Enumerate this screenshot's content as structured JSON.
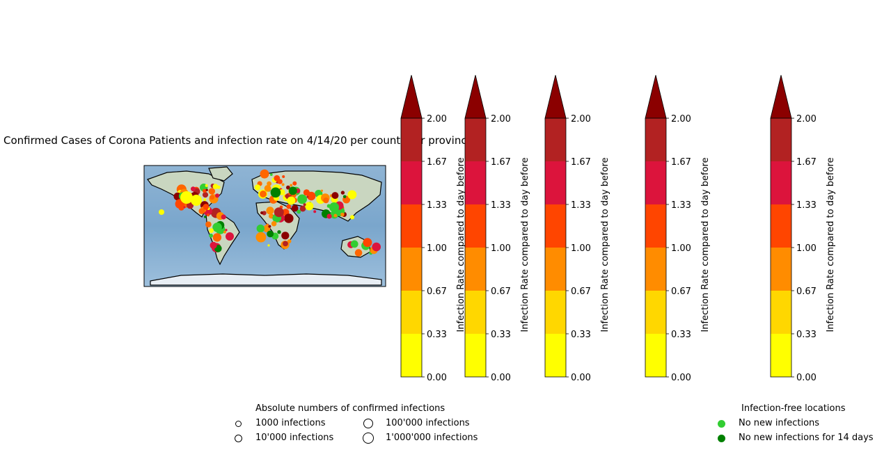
{
  "chart_data": [
    {
      "type": "scatter-map",
      "title": "Confirmed Cases of Corona Patients and infection rate on 4/14/20 per country or province",
      "size_legend": {
        "title": "Absolute numbers of confirmed infections",
        "entries": [
          "1000 infections",
          "10'000 infections",
          "100'000 infections",
          "1'000'000 infections"
        ]
      },
      "free_legend": {
        "title": "Infection-free locations",
        "entries": [
          {
            "label": "No new infections",
            "color": "#32cd32"
          },
          {
            "label": "No new infections for 14 days",
            "color": "#008000"
          }
        ]
      }
    },
    {
      "type": "colorbar",
      "label": "Infection Rate compared to day before",
      "ticks": [
        "0.00",
        "0.33",
        "0.67",
        "1.00",
        "1.33",
        "1.67",
        "2.00"
      ],
      "colors": [
        "#ffff00",
        "#ffd700",
        "#ff8c00",
        "#ff4500",
        "#dc143c",
        "#b22222"
      ],
      "extend_color": "#8b0000"
    }
  ]
}
